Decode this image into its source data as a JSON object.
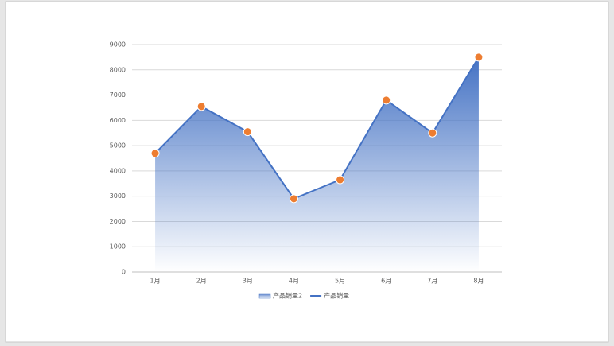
{
  "chart_data": {
    "type": "line",
    "categories": [
      "1月",
      "2月",
      "3月",
      "4月",
      "5月",
      "6月",
      "7月",
      "8月"
    ],
    "series": [
      {
        "name": "产品销量2",
        "type": "area",
        "color": "#4472c4",
        "values": [
          4700,
          6550,
          5550,
          2900,
          3650,
          6800,
          5500,
          8500
        ]
      },
      {
        "name": "产品销量",
        "type": "line",
        "color": "#4472c4",
        "marker_color": "#ed7d31",
        "values": [
          4700,
          6550,
          5550,
          2900,
          3650,
          6800,
          5500,
          8500
        ]
      }
    ],
    "ylim": [
      0,
      9000
    ],
    "yticks": [
      0,
      1000,
      2000,
      3000,
      4000,
      5000,
      6000,
      7000,
      8000,
      9000
    ],
    "grid": true,
    "legend": "bottom"
  }
}
